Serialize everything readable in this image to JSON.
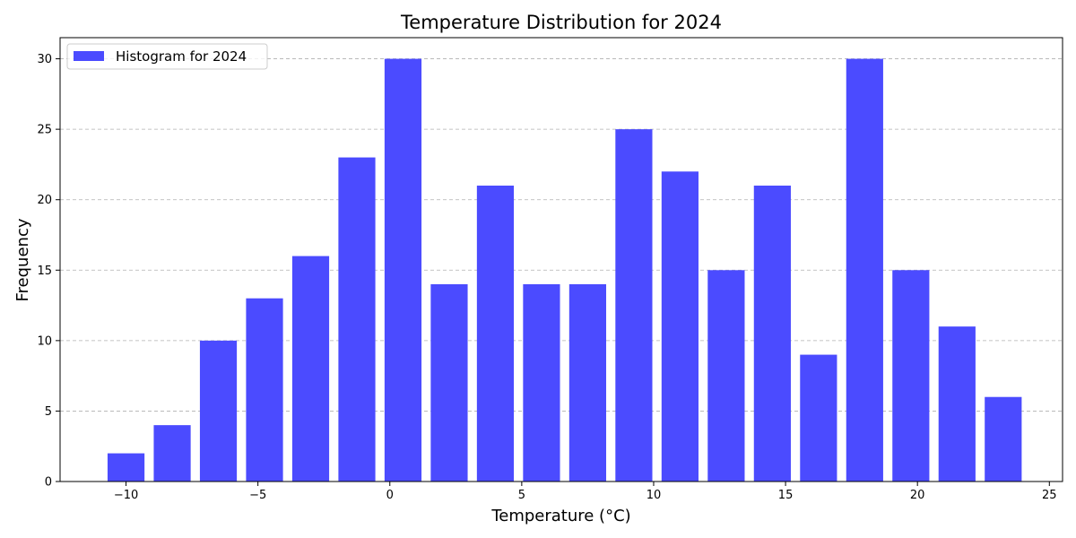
{
  "chart_data": {
    "type": "bar",
    "title": "Temperature Distribution for 2024",
    "xlabel": "Temperature (°C)",
    "ylabel": "Frequency",
    "legend": {
      "label": "Histogram for 2024",
      "placement": "top-left"
    },
    "xlim": [
      -12.5,
      25.5
    ],
    "ylim": [
      0,
      31.5
    ],
    "x_ticks": [
      -10,
      -5,
      0,
      5,
      10,
      15,
      20,
      25
    ],
    "y_ticks": [
      0,
      5,
      10,
      15,
      20,
      25,
      30
    ],
    "grid": {
      "y": true,
      "x": false,
      "style": "dashed"
    },
    "bar_color": "#4b4bff",
    "bar_width": 1.4,
    "x": [
      -10,
      -8.25,
      -6.5,
      -4.75,
      -3,
      -1.25,
      0.5,
      2.25,
      4,
      5.75,
      7.5,
      9.25,
      11,
      12.75,
      14.5,
      16.25,
      18,
      19.75,
      21.5,
      23.25
    ],
    "values": [
      2,
      4,
      10,
      13,
      16,
      23,
      30,
      14,
      21,
      14,
      14,
      25,
      22,
      15,
      21,
      9,
      30,
      15,
      11,
      6
    ]
  }
}
